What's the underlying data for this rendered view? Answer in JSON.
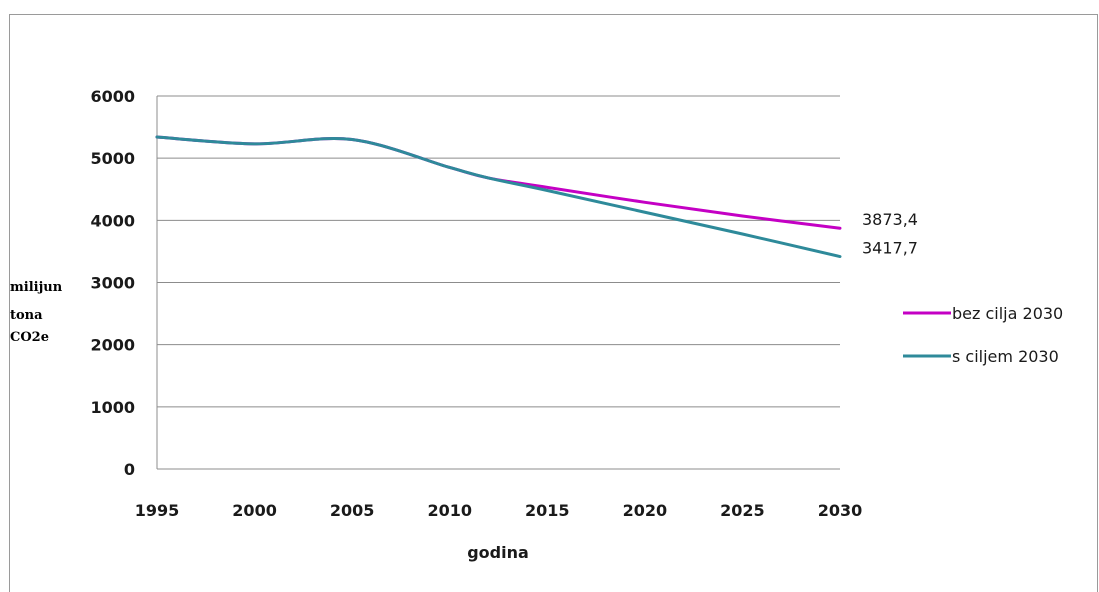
{
  "chart_data": {
    "type": "line",
    "title": "",
    "xlabel": "godina",
    "ylabel_lines": [
      "milijun",
      "tona",
      "CO2e"
    ],
    "x": [
      1995,
      2000,
      2005,
      2010,
      2012,
      2015,
      2020,
      2025,
      2030
    ],
    "xticks": [
      "1995",
      "2000",
      "2005",
      "2010",
      "2015",
      "2020",
      "2025",
      "2030"
    ],
    "xlim": [
      1995,
      2030
    ],
    "yticks": [
      "0",
      "1000",
      "2000",
      "3000",
      "4000",
      "5000",
      "6000"
    ],
    "ylim": [
      0,
      6000
    ],
    "grid": true,
    "legend_position": "right",
    "series": [
      {
        "name": "bez cilja 2030",
        "color": "#c400c4",
        "values": [
          5340,
          5230,
          5300,
          4850,
          4680,
          4530,
          4290,
          4070,
          3873.4
        ],
        "end_label": "3873,4"
      },
      {
        "name": "s ciljem 2030",
        "color": "#2e8a9a",
        "values": [
          5340,
          5230,
          5300,
          4850,
          4680,
          4480,
          4130,
          3780,
          3417.7
        ],
        "end_label": "3417,7"
      }
    ]
  }
}
